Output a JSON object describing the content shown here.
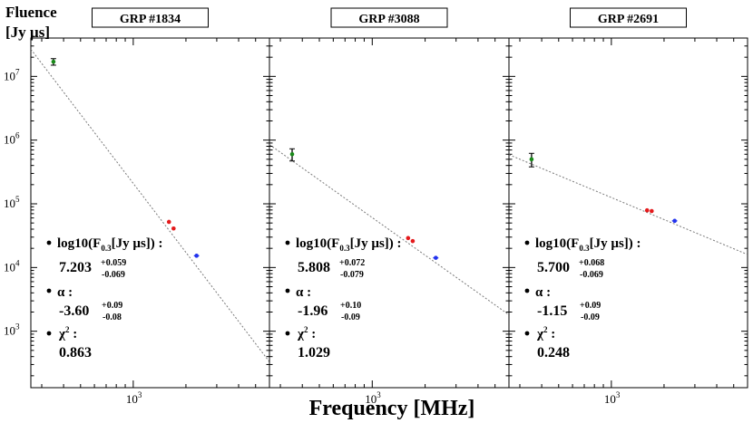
{
  "figure": {
    "ylabel_line1": "Fluence",
    "ylabel_line2": "[Jy  µs]",
    "xlabel": "Frequency [MHz]"
  },
  "axes": {
    "x_scale": "log",
    "y_scale": "log",
    "xlim": [
      260,
      6000
    ],
    "ylim": [
      130,
      40000000
    ],
    "y_tick_labels": [
      {
        "base": "10",
        "exp": "7",
        "value": 10000000
      },
      {
        "base": "10",
        "exp": "6",
        "value": 1000000
      },
      {
        "base": "10",
        "exp": "5",
        "value": 100000
      },
      {
        "base": "10",
        "exp": "4",
        "value": 10000
      },
      {
        "base": "10",
        "exp": "3",
        "value": 1000
      }
    ],
    "x_tick_label": {
      "base": "10",
      "exp": "3",
      "value": 1000
    }
  },
  "chart_data": [
    {
      "type": "scatter",
      "title": "GRP #1834",
      "fit": {
        "log10_F03": 7.203,
        "alpha": -3.6
      },
      "points": [
        {
          "x": 350,
          "y": 17000000,
          "yerr_low": 2000000,
          "yerr_high": 2000000,
          "color": "#1a8a1a",
          "xerr_mhz": 0
        },
        {
          "x": 1600,
          "y": 52000,
          "color": "#e41a1c",
          "xerr_mhz": 20
        },
        {
          "x": 1700,
          "y": 41000,
          "color": "#e41a1c",
          "xerr_mhz": 20
        },
        {
          "x": 2300,
          "y": 15300,
          "color": "#2233ee",
          "xerr_mhz": 80
        }
      ],
      "annotation": {
        "param1_label": "log10(F",
        "param1_sub": "0.3",
        "param1_tail": "[Jy  µs]) :",
        "param1_value": "7.203",
        "param1_err_plus": "+0.059",
        "param1_err_minus": "-0.069",
        "param2_label": "α :",
        "param2_value": "-3.60",
        "param2_err_plus": "+0.09",
        "param2_err_minus": "-0.08",
        "param3_label": "χ",
        "param3_sup": "2",
        "param3_tail": " :",
        "param3_value": "0.863"
      }
    },
    {
      "type": "scatter",
      "title": "GRP #3088",
      "fit": {
        "log10_F03": 5.808,
        "alpha": -1.96
      },
      "points": [
        {
          "x": 350,
          "y": 600000,
          "yerr_low": 130000,
          "yerr_high": 130000,
          "color": "#1a8a1a",
          "xerr_mhz": 0
        },
        {
          "x": 1600,
          "y": 29000,
          "color": "#e41a1c",
          "xerr_mhz": 20
        },
        {
          "x": 1700,
          "y": 26000,
          "color": "#e41a1c",
          "xerr_mhz": 20
        },
        {
          "x": 2300,
          "y": 14200,
          "color": "#2233ee",
          "xerr_mhz": 80
        }
      ],
      "annotation": {
        "param1_label": "log10(F",
        "param1_sub": "0.3",
        "param1_tail": "[Jy  µs]) :",
        "param1_value": "5.808",
        "param1_err_plus": "+0.072",
        "param1_err_minus": "-0.079",
        "param2_label": "α :",
        "param2_value": "-1.96",
        "param2_err_plus": "+0.10",
        "param2_err_minus": "-0.09",
        "param3_label": "χ",
        "param3_sup": "2",
        "param3_tail": " :",
        "param3_value": "1.029"
      }
    },
    {
      "type": "scatter",
      "title": "GRP #2691",
      "fit": {
        "log10_F03": 5.7,
        "alpha": -1.15
      },
      "points": [
        {
          "x": 350,
          "y": 500000,
          "yerr_low": 120000,
          "yerr_high": 120000,
          "color": "#1a8a1a",
          "xerr_mhz": 0
        },
        {
          "x": 1600,
          "y": 79000,
          "color": "#e41a1c",
          "xerr_mhz": 20
        },
        {
          "x": 1700,
          "y": 77000,
          "color": "#e41a1c",
          "xerr_mhz": 20
        },
        {
          "x": 2300,
          "y": 54000,
          "color": "#2233ee",
          "xerr_mhz": 80
        }
      ],
      "annotation": {
        "param1_label": "log10(F",
        "param1_sub": "0.3",
        "param1_tail": "[Jy  µs]) :",
        "param1_value": "5.700",
        "param1_err_plus": "+0.068",
        "param1_err_minus": "-0.069",
        "param2_label": "α :",
        "param2_value": "-1.15",
        "param2_err_plus": "+0.09",
        "param2_err_minus": "-0.09",
        "param3_label": "χ",
        "param3_sup": "2",
        "param3_tail": " :",
        "param3_value": "0.248"
      }
    }
  ]
}
